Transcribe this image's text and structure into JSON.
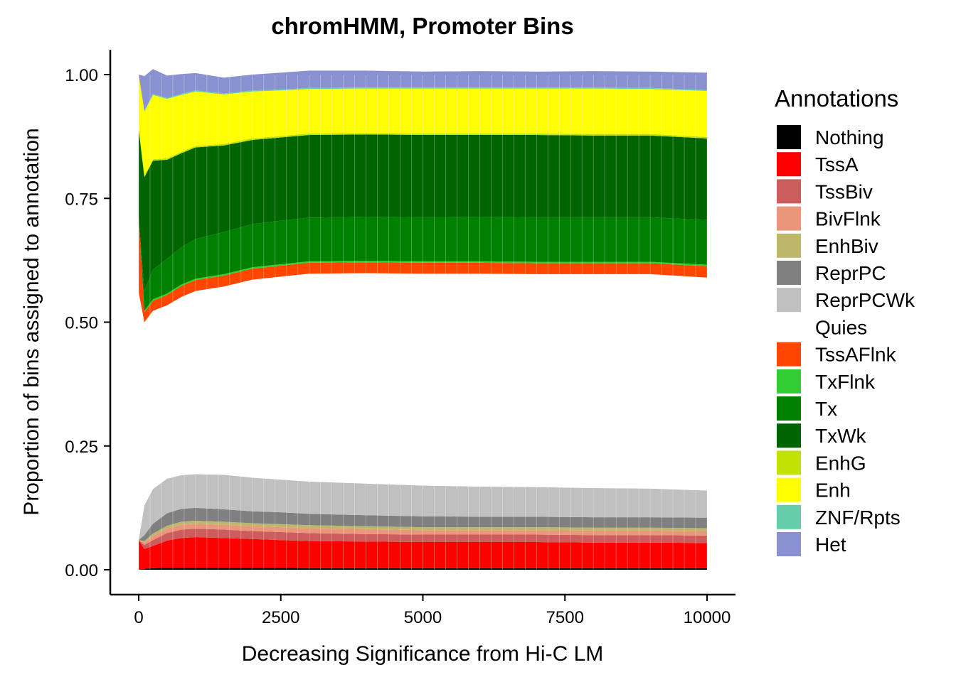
{
  "chart_data": {
    "type": "area",
    "title": "chromHMM, Promoter Bins",
    "xlabel": "Decreasing Significance from Hi-C LM",
    "ylabel": "Proportion of bins assigned to annotation",
    "xlim": [
      0,
      10000
    ],
    "ylim": [
      0,
      1
    ],
    "xticks": [
      0,
      2500,
      5000,
      7500,
      10000
    ],
    "xtick_labels": [
      "0",
      "2500",
      "5000",
      "7500",
      "10000"
    ],
    "yticks": [
      0,
      0.25,
      0.5,
      0.75,
      1.0
    ],
    "ytick_labels": [
      "0.00",
      "0.25",
      "0.50",
      "0.75",
      "1.00"
    ],
    "grid": false,
    "legend": {
      "title": "Annotations",
      "position": "right",
      "entries": [
        {
          "name": "Nothing",
          "color": "#000000"
        },
        {
          "name": "TssA",
          "color": "#ff0000"
        },
        {
          "name": "TssBiv",
          "color": "#cd5c5c"
        },
        {
          "name": "BivFlnk",
          "color": "#e9967a"
        },
        {
          "name": "EnhBiv",
          "color": "#bdb76b"
        },
        {
          "name": "ReprPC",
          "color": "#808080"
        },
        {
          "name": "ReprPCWk",
          "color": "#c0c0c0"
        },
        {
          "name": "Quies",
          "color": "#ffffff"
        },
        {
          "name": "TssAFlnk",
          "color": "#ff4500"
        },
        {
          "name": "TxFlnk",
          "color": "#32cd32"
        },
        {
          "name": "Tx",
          "color": "#008000"
        },
        {
          "name": "TxWk",
          "color": "#006400"
        },
        {
          "name": "EnhG",
          "color": "#c2e105"
        },
        {
          "name": "Enh",
          "color": "#ffff00"
        },
        {
          "name": "ZNF/Rpts",
          "color": "#66cdaa"
        },
        {
          "name": "Het",
          "color": "#8a91d0"
        }
      ]
    },
    "x": [
      0,
      100,
      250,
      500,
      750,
      1000,
      1500,
      2000,
      2500,
      3000,
      4000,
      5000,
      6000,
      7000,
      8000,
      9000,
      10000
    ],
    "series": [
      {
        "name": "Nothing",
        "values": [
          0.0,
          0.002,
          0.003,
          0.004,
          0.004,
          0.004,
          0.004,
          0.004,
          0.004,
          0.003,
          0.003,
          0.003,
          0.003,
          0.003,
          0.003,
          0.003,
          0.003
        ]
      },
      {
        "name": "TssA",
        "values": [
          0.06,
          0.04,
          0.045,
          0.055,
          0.06,
          0.062,
          0.06,
          0.058,
          0.056,
          0.055,
          0.054,
          0.053,
          0.053,
          0.053,
          0.052,
          0.052,
          0.051
        ]
      },
      {
        "name": "TssBiv",
        "values": [
          0.0,
          0.008,
          0.012,
          0.015,
          0.017,
          0.017,
          0.017,
          0.016,
          0.016,
          0.016,
          0.015,
          0.015,
          0.015,
          0.015,
          0.015,
          0.015,
          0.015
        ]
      },
      {
        "name": "BivFlnk",
        "values": [
          0.0,
          0.005,
          0.008,
          0.009,
          0.01,
          0.01,
          0.01,
          0.01,
          0.01,
          0.01,
          0.01,
          0.009,
          0.009,
          0.009,
          0.009,
          0.009,
          0.009
        ]
      },
      {
        "name": "EnhBiv",
        "values": [
          0.0,
          0.003,
          0.005,
          0.006,
          0.006,
          0.006,
          0.006,
          0.006,
          0.006,
          0.006,
          0.006,
          0.006,
          0.006,
          0.006,
          0.006,
          0.006,
          0.006
        ]
      },
      {
        "name": "ReprPC",
        "values": [
          0.0,
          0.012,
          0.02,
          0.025,
          0.026,
          0.026,
          0.025,
          0.024,
          0.024,
          0.023,
          0.022,
          0.022,
          0.021,
          0.021,
          0.021,
          0.021,
          0.021
        ]
      },
      {
        "name": "ReprPCWk",
        "values": [
          0.0,
          0.06,
          0.07,
          0.07,
          0.068,
          0.068,
          0.07,
          0.068,
          0.066,
          0.065,
          0.064,
          0.062,
          0.061,
          0.06,
          0.059,
          0.058,
          0.055
        ]
      },
      {
        "name": "Quies",
        "values": [
          0.5,
          0.37,
          0.36,
          0.35,
          0.36,
          0.37,
          0.38,
          0.4,
          0.41,
          0.42,
          0.425,
          0.428,
          0.43,
          0.43,
          0.432,
          0.433,
          0.43
        ]
      },
      {
        "name": "TssAFlnk",
        "values": [
          0.15,
          0.02,
          0.02,
          0.021,
          0.022,
          0.022,
          0.022,
          0.022,
          0.022,
          0.022,
          0.022,
          0.022,
          0.022,
          0.022,
          0.022,
          0.022,
          0.023
        ]
      },
      {
        "name": "TxFlnk",
        "values": [
          0.0,
          0.003,
          0.003,
          0.003,
          0.003,
          0.003,
          0.003,
          0.003,
          0.003,
          0.003,
          0.003,
          0.003,
          0.003,
          0.003,
          0.003,
          0.003,
          0.003
        ]
      },
      {
        "name": "Tx",
        "values": [
          0.0,
          0.04,
          0.06,
          0.07,
          0.075,
          0.08,
          0.085,
          0.087,
          0.088,
          0.088,
          0.089,
          0.089,
          0.09,
          0.09,
          0.09,
          0.09,
          0.09
        ]
      },
      {
        "name": "TxWk",
        "values": [
          0.18,
          0.23,
          0.22,
          0.2,
          0.19,
          0.185,
          0.175,
          0.17,
          0.168,
          0.167,
          0.166,
          0.166,
          0.165,
          0.166,
          0.165,
          0.165,
          0.165
        ]
      },
      {
        "name": "EnhG",
        "values": [
          0.0,
          0.002,
          0.003,
          0.003,
          0.003,
          0.003,
          0.003,
          0.003,
          0.003,
          0.003,
          0.003,
          0.003,
          0.003,
          0.003,
          0.003,
          0.003,
          0.003
        ]
      },
      {
        "name": "Enh",
        "values": [
          0.11,
          0.13,
          0.13,
          0.12,
          0.115,
          0.11,
          0.1,
          0.095,
          0.092,
          0.09,
          0.09,
          0.091,
          0.091,
          0.091,
          0.092,
          0.091,
          0.093
        ]
      },
      {
        "name": "ZNF/Rpts",
        "values": [
          0.0,
          0.002,
          0.002,
          0.002,
          0.002,
          0.002,
          0.002,
          0.002,
          0.002,
          0.002,
          0.002,
          0.002,
          0.002,
          0.002,
          0.002,
          0.002,
          0.002
        ]
      },
      {
        "name": "Het",
        "values": [
          0.0,
          0.07,
          0.05,
          0.045,
          0.04,
          0.035,
          0.032,
          0.032,
          0.034,
          0.035,
          0.034,
          0.032,
          0.033,
          0.032,
          0.033,
          0.033,
          0.035
        ]
      }
    ]
  }
}
